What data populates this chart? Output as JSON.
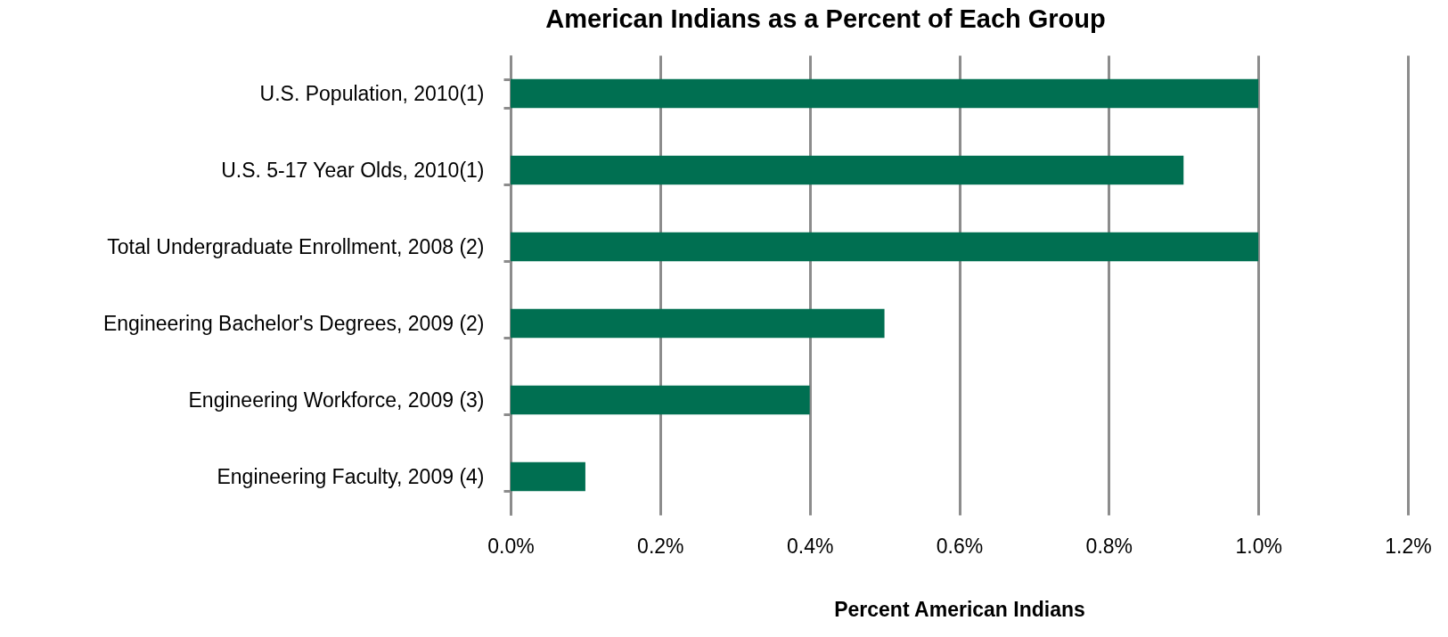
{
  "chart_data": {
    "type": "bar",
    "orientation": "horizontal",
    "title": "American Indians as a Percent of Each Group",
    "xlabel": "Percent American Indians",
    "categories": [
      "U.S. Population, 2010(1)",
      "U.S. 5-17 Year Olds, 2010(1)",
      "Total Undergraduate Enrollment, 2008 (2)",
      "Engineering Bachelor's Degrees, 2009 (2)",
      "Engineering Workforce, 2009 (3)",
      "Engineering Faculty, 2009 (4)"
    ],
    "values": [
      1.0,
      0.9,
      1.0,
      0.5,
      0.4,
      0.1
    ],
    "color": "#006f51",
    "xlim": [
      0,
      1.2
    ],
    "xticks": [
      {
        "value": 0,
        "label": "0.0%"
      },
      {
        "value": 0.2,
        "label": "0.2%"
      },
      {
        "value": 0.4,
        "label": "0.4%"
      },
      {
        "value": 0.6,
        "label": "0.6%"
      },
      {
        "value": 0.8,
        "label": "0.8%"
      },
      {
        "value": 1.0,
        "label": "1.0%"
      },
      {
        "value": 1.2,
        "label": "1.2%"
      }
    ],
    "grid": "x"
  }
}
